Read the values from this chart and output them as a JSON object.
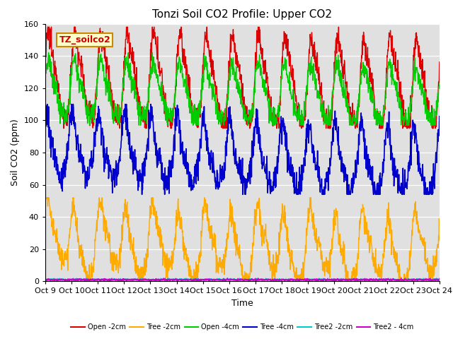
{
  "title": "Tonzi Soil CO2 Profile: Upper CO2",
  "xlabel": "Time",
  "ylabel": "Soil CO2 (ppm)",
  "ylim": [
    0,
    160
  ],
  "plot_bg": "#e0e0e0",
  "fig_bg": "#ffffff",
  "legend_label": "TZ_soilco2",
  "legend_box_facecolor": "#ffffcc",
  "legend_box_edgecolor": "#cc8800",
  "legend_label_color": "#cc0000",
  "series": {
    "open_2cm": {
      "color": "#dd0000",
      "label": "Open -2cm",
      "lw": 1.0
    },
    "tree_2cm": {
      "color": "#ffaa00",
      "label": "Tree -2cm",
      "lw": 1.0
    },
    "open_4cm": {
      "color": "#00cc00",
      "label": "Open -4cm",
      "lw": 1.0
    },
    "tree_4cm": {
      "color": "#0000cc",
      "label": "Tree -4cm",
      "lw": 1.2
    },
    "tree2_2cm": {
      "color": "#00cccc",
      "label": "Tree2 -2cm",
      "lw": 1.0
    },
    "tree2_4cm": {
      "color": "#cc00cc",
      "label": "Tree2 - 4cm",
      "lw": 1.2
    }
  },
  "tick_labels": [
    "Oct 9",
    "Oct 10",
    "Oct 11",
    "Oct 12",
    "Oct 13",
    "Oct 14",
    "Oct 15",
    "Oct 16",
    "Oct 17",
    "Oct 18",
    "Oct 19",
    "Oct 20",
    "Oct 21",
    "Oct 22",
    "Oct 23",
    "Oct 24"
  ],
  "yticks": [
    0,
    20,
    40,
    60,
    80,
    100,
    120,
    140,
    160
  ],
  "n_points": 1440,
  "seed": 12345
}
